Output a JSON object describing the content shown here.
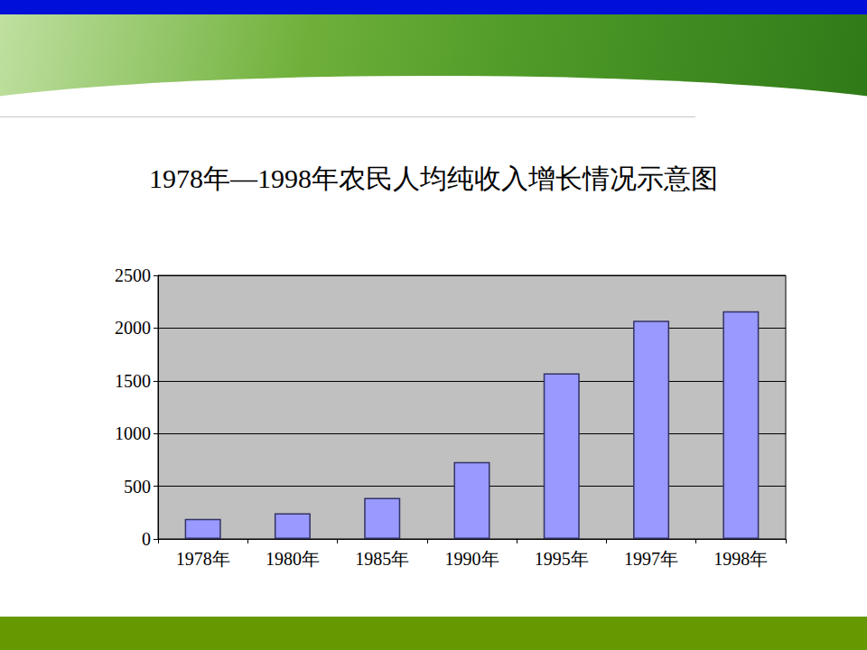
{
  "chart_data": {
    "type": "bar",
    "title": "1978年—1998年农民人均纯收入增长情况示意图",
    "categories": [
      "1978年",
      "1980年",
      "1985年",
      "1990年",
      "1995年",
      "1997年",
      "1998年"
    ],
    "values": [
      190,
      245,
      390,
      730,
      1570,
      2070,
      2160
    ],
    "color": "#9999ff",
    "ylim": [
      0,
      2500
    ],
    "yticks": [
      0,
      500,
      1000,
      1500,
      2000,
      2500
    ],
    "grid": true
  }
}
